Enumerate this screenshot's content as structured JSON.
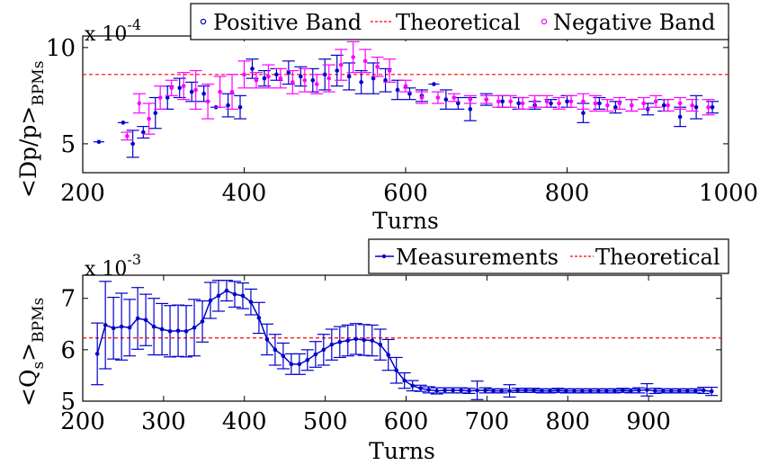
{
  "chart_data": [
    {
      "type": "scatter",
      "multiplier_label": "x 10",
      "multiplier_exponent": "-4",
      "ylabel_main": "<Dp/p>",
      "ylabel_sub": "BPMs",
      "xlabel": "Turns",
      "xlim": [
        200,
        1000
      ],
      "ylim": [
        3.5,
        10.6
      ],
      "xticks": [
        200,
        400,
        600,
        800,
        1000
      ],
      "yticks": [
        5,
        10
      ],
      "legend_position": "top-right",
      "colors": {
        "positive": "#0000cc",
        "negative": "#ff00ff",
        "theoretical": "#ff0000"
      },
      "theoretical_value": 8.6,
      "series": [
        {
          "name": "Positive Band",
          "style": "points",
          "x": [
            220,
            250,
            262,
            275,
            290,
            305,
            320,
            335,
            350,
            365,
            380,
            395,
            410,
            425,
            440,
            455,
            470,
            485,
            500,
            515,
            530,
            545,
            560,
            575,
            590,
            605,
            620,
            635,
            650,
            665,
            680,
            700,
            720,
            740,
            760,
            780,
            800,
            820,
            840,
            860,
            880,
            900,
            920,
            940,
            960,
            980
          ],
          "y": [
            5.1,
            6.1,
            5.0,
            5.6,
            6.6,
            7.4,
            7.9,
            7.7,
            7.6,
            6.9,
            7.0,
            6.9,
            8.9,
            8.4,
            8.6,
            8.7,
            8.5,
            8.3,
            8.6,
            8.8,
            8.5,
            8.2,
            8.4,
            8.3,
            7.8,
            7.6,
            7.5,
            8.1,
            7.3,
            7.1,
            6.8,
            7.3,
            7.2,
            7.1,
            7.0,
            7.1,
            7.2,
            6.6,
            7.1,
            6.9,
            7.0,
            6.8,
            7.0,
            6.4,
            6.9,
            6.9
          ],
          "err": [
            0,
            0,
            0.7,
            0.3,
            0.8,
            0.6,
            0.5,
            0.5,
            0.4,
            0,
            0.6,
            0.6,
            0.5,
            0.4,
            0.3,
            0.6,
            0.5,
            0.6,
            0.8,
            0.8,
            0.7,
            0.6,
            0.8,
            0.6,
            0.5,
            0.3,
            0.3,
            0,
            0.5,
            0.3,
            0.6,
            0.3,
            0.3,
            0.3,
            0.2,
            0.2,
            0.3,
            0.5,
            0.3,
            0.3,
            0.3,
            0.3,
            0.3,
            0.5,
            0.6,
            0.3
          ]
        },
        {
          "name": "Negative Band",
          "style": "points",
          "x": [
            255,
            270,
            282,
            296,
            310,
            325,
            340,
            355,
            370,
            385,
            400,
            415,
            430,
            445,
            460,
            475,
            490,
            505,
            520,
            535,
            550,
            565,
            580,
            600,
            620,
            640,
            660,
            680,
            700,
            715,
            730,
            745,
            760,
            775,
            790,
            805,
            820,
            835,
            850,
            865,
            880,
            895,
            910,
            925,
            940,
            955,
            975
          ],
          "y": [
            5.4,
            7.1,
            6.3,
            7.4,
            7.9,
            8.0,
            7.8,
            7.2,
            7.7,
            7.7,
            8.6,
            8.3,
            8.5,
            8.4,
            8.2,
            8.3,
            8.1,
            8.4,
            9.1,
            9.5,
            9.3,
            9.0,
            8.8,
            8.0,
            7.4,
            7.4,
            7.4,
            7.3,
            7.3,
            7.2,
            7.2,
            7.1,
            7.2,
            7.2,
            7.1,
            7.2,
            7.2,
            7.1,
            7.0,
            7.1,
            7.0,
            7.1,
            7.2,
            7.0,
            7.1,
            7.0,
            6.9
          ],
          "err": [
            0.2,
            0.5,
            0.8,
            0.6,
            0.4,
            0.7,
            1.0,
            0.9,
            0.8,
            0.9,
            0.7,
            0.4,
            0.6,
            0.5,
            0.6,
            0.6,
            0.5,
            0.7,
            0.8,
            0.8,
            0.6,
            0.5,
            0.6,
            0.3,
            0.3,
            0.3,
            0.2,
            0.2,
            0.2,
            0.3,
            0.3,
            0.3,
            0.3,
            0.3,
            0.3,
            0.3,
            0.4,
            0.4,
            0.3,
            0.3,
            0.3,
            0.3,
            0.3,
            0.3,
            0.3,
            0.3,
            0.4
          ]
        }
      ],
      "reference_line": {
        "name": "Theoretical",
        "value": 8.6
      }
    },
    {
      "type": "line",
      "multiplier_label": "x 10",
      "multiplier_exponent": "-3",
      "ylabel_main": "<Q",
      "ylabel_sub1": "s",
      "ylabel_after": ">",
      "ylabel_sub2": "BPMs",
      "xlabel": "Turns",
      "xlim": [
        200,
        990
      ],
      "ylim": [
        5,
        7.45
      ],
      "xticks": [
        200,
        300,
        400,
        500,
        600,
        700,
        800,
        900
      ],
      "yticks": [
        5,
        6,
        7
      ],
      "legend_position": "top-right",
      "colors": {
        "measurements": "#0000cc",
        "theoretical": "#ff0000"
      },
      "theoretical_value": 6.23,
      "series": [
        {
          "name": "Measurements",
          "style": "line+errorbars",
          "x": [
            218,
            228,
            238,
            248,
            258,
            268,
            278,
            288,
            298,
            308,
            318,
            328,
            338,
            348,
            358,
            368,
            378,
            388,
            398,
            408,
            418,
            428,
            438,
            448,
            458,
            468,
            478,
            488,
            498,
            508,
            518,
            528,
            538,
            548,
            558,
            568,
            578,
            588,
            598,
            608,
            618,
            628,
            638,
            648,
            658,
            668,
            678,
            688,
            698,
            708,
            718,
            728,
            738,
            748,
            758,
            768,
            778,
            788,
            798,
            808,
            818,
            828,
            838,
            848,
            858,
            868,
            878,
            888,
            898,
            908,
            918,
            928,
            938,
            948,
            958,
            968,
            978
          ],
          "y": [
            5.92,
            6.48,
            6.42,
            6.45,
            6.43,
            6.61,
            6.58,
            6.45,
            6.4,
            6.36,
            6.37,
            6.36,
            6.43,
            6.55,
            6.96,
            7.05,
            7.15,
            7.08,
            7.05,
            6.93,
            6.62,
            6.2,
            6.0,
            5.88,
            5.72,
            5.72,
            5.8,
            5.91,
            6.0,
            6.1,
            6.15,
            6.18,
            6.21,
            6.19,
            6.18,
            6.1,
            5.9,
            5.6,
            5.4,
            5.3,
            5.25,
            5.22,
            5.2,
            5.21,
            5.21,
            5.21,
            5.2,
            5.21,
            5.21,
            5.2,
            5.2,
            5.2,
            5.21,
            5.21,
            5.21,
            5.2,
            5.2,
            5.21,
            5.2,
            5.2,
            5.2,
            5.2,
            5.2,
            5.2,
            5.2,
            5.21,
            5.2,
            5.21,
            5.22,
            5.2,
            5.2,
            5.2,
            5.2,
            5.2,
            5.2,
            5.21,
            5.19
          ],
          "err": [
            0.6,
            0.85,
            0.6,
            0.65,
            0.55,
            0.6,
            0.5,
            0.55,
            0.5,
            0.5,
            0.5,
            0.5,
            0.55,
            0.4,
            0.35,
            0.3,
            0.2,
            0.25,
            0.25,
            0.25,
            0.3,
            0.3,
            0.3,
            0.25,
            0.2,
            0.2,
            0.2,
            0.25,
            0.3,
            0.3,
            0.3,
            0.3,
            0.3,
            0.3,
            0.3,
            0.3,
            0.3,
            0.25,
            0.15,
            0.1,
            0.06,
            0.06,
            0.06,
            0.05,
            0.05,
            0.05,
            0.05,
            0.18,
            0.05,
            0.04,
            0.04,
            0.12,
            0.04,
            0.04,
            0.04,
            0.04,
            0.04,
            0.04,
            0.04,
            0.04,
            0.04,
            0.04,
            0.04,
            0.04,
            0.04,
            0.04,
            0.04,
            0.05,
            0.12,
            0.05,
            0.04,
            0.04,
            0.04,
            0.04,
            0.04,
            0.06,
            0.08
          ]
        }
      ],
      "reference_line": {
        "name": "Theoretical",
        "value": 6.23
      }
    }
  ]
}
